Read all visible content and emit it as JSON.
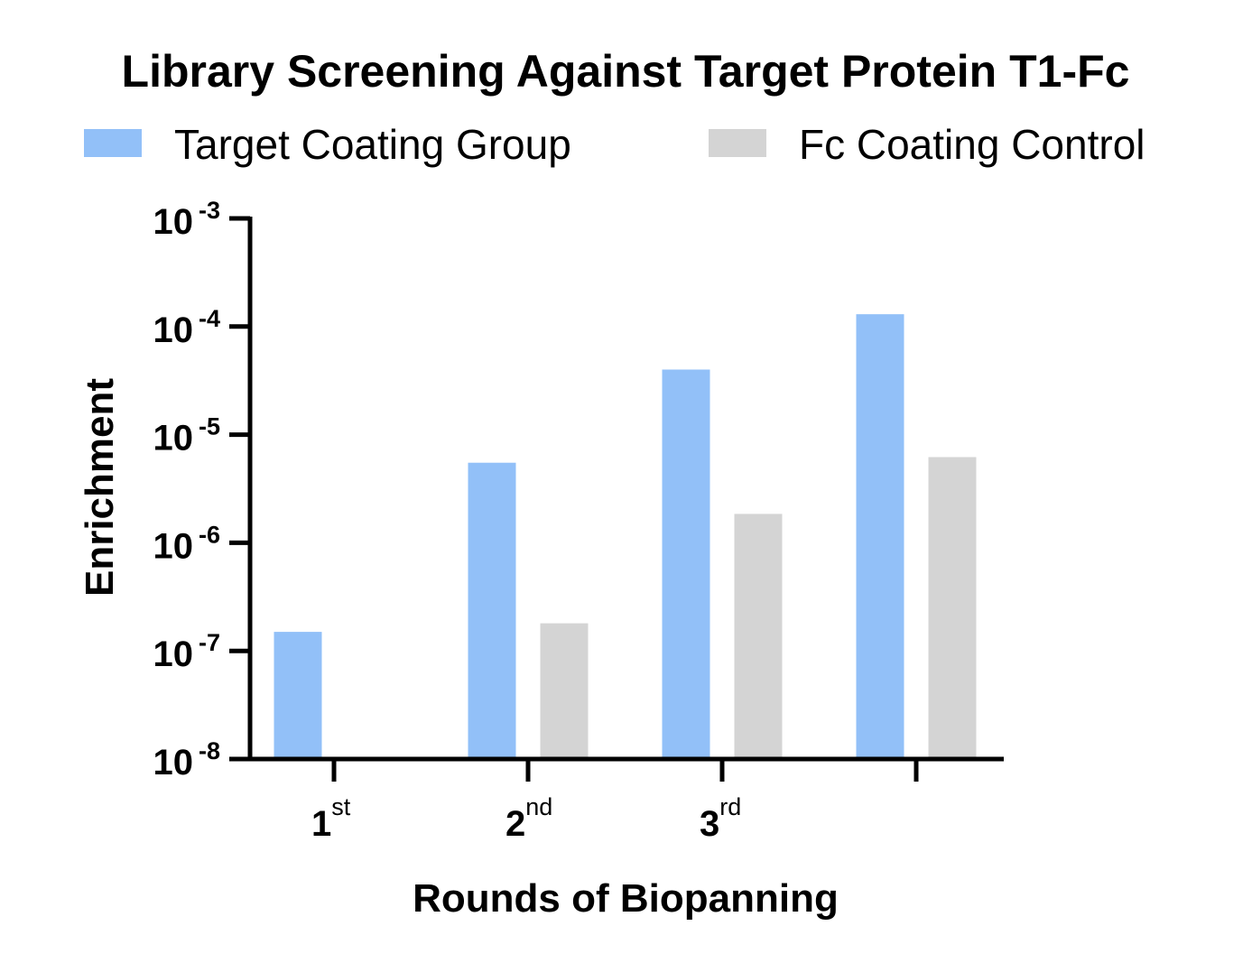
{
  "chart_data": {
    "type": "bar",
    "title": "Library Screening Against Target Protein T1-Fc",
    "xlabel": "Rounds of Biopanning",
    "ylabel": "Enrichment",
    "yscale": "log",
    "ylim": [
      1e-08,
      0.001
    ],
    "yticks": [
      {
        "base": "10",
        "exp": "-3"
      },
      {
        "base": "10",
        "exp": "-4"
      },
      {
        "base": "10",
        "exp": "-5"
      },
      {
        "base": "10",
        "exp": "-6"
      },
      {
        "base": "10",
        "exp": "-7"
      },
      {
        "base": "10",
        "exp": "-8"
      }
    ],
    "categories": [
      {
        "main": "1",
        "sup": "st"
      },
      {
        "main": "2",
        "sup": "nd"
      },
      {
        "main": "3",
        "sup": "rd"
      },
      {
        "main": "",
        "sup": ""
      }
    ],
    "series": [
      {
        "name": "Target Coating Group",
        "color": "#92c0f8",
        "values": [
          1.5e-07,
          5.5e-06,
          4e-05,
          0.00013
        ]
      },
      {
        "name": "Fc Coating Control",
        "color": "#d4d4d4",
        "values": [
          null,
          1.8e-07,
          1.85e-06,
          6.2e-06
        ]
      }
    ],
    "legend_position": "top",
    "grid": false
  }
}
